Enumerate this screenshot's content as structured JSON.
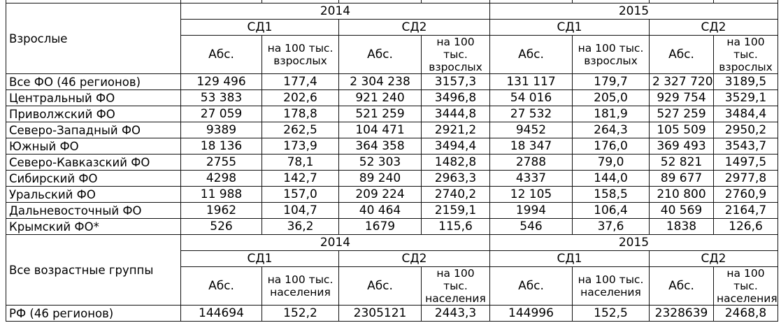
{
  "section1": {
    "label": "Взрослые",
    "year1": "2014",
    "year2": "2015",
    "sd1": "СД1",
    "sd2": "СД2",
    "abs": "Абс.",
    "per100": "на 100 тыс. взрослых",
    "rows": [
      {
        "region": "Все ФО (46 регионов)",
        "v": [
          "129 496",
          "177,4",
          "2 304 238",
          "3157,3",
          "131 117",
          "179,7",
          "2 327 720",
          "3189,5"
        ]
      },
      {
        "region": "Центральный ФО",
        "v": [
          "53 383",
          "202,6",
          "921 240",
          "3496,8",
          "54 016",
          "205,0",
          "929 754",
          "3529,1"
        ]
      },
      {
        "region": "Приволжский ФО",
        "v": [
          "27 059",
          "178,8",
          "521 259",
          "3444,8",
          "27 532",
          "181,9",
          "527 259",
          "3484,4"
        ]
      },
      {
        "region": "Северо-Западный ФО",
        "v": [
          "9389",
          "262,5",
          "104 471",
          "2921,2",
          "9452",
          "264,3",
          "105 509",
          "2950,2"
        ]
      },
      {
        "region": "Южный ФО",
        "v": [
          "18 136",
          "173,9",
          "364 358",
          "3494,4",
          "18 347",
          "176,0",
          "369 493",
          "3543,7"
        ]
      },
      {
        "region": "Северо-Кавказский ФО",
        "v": [
          "2755",
          "78,1",
          "52 303",
          "1482,8",
          "2788",
          "79,0",
          "52 821",
          "1497,5"
        ]
      },
      {
        "region": "Сибирский ФО",
        "v": [
          "4298",
          "142,7",
          "89 240",
          "2963,3",
          "4337",
          "144,0",
          "89 677",
          "2977,8"
        ]
      },
      {
        "region": "Уральский ФО",
        "v": [
          "11 988",
          "157,0",
          "209 224",
          "2740,2",
          "12 105",
          "158,5",
          "210 800",
          "2760,9"
        ]
      },
      {
        "region": "Дальневосточный ФО",
        "v": [
          "1962",
          "104,7",
          "40 464",
          "2159,1",
          "1994",
          "106,4",
          "40 569",
          "2164,7"
        ]
      },
      {
        "region": "Крымский ФО*",
        "v": [
          "526",
          "36,2",
          "1679",
          "115,6",
          "546",
          "37,6",
          "1838",
          "126,6"
        ]
      }
    ]
  },
  "section2": {
    "label": "Все возрастные группы",
    "year1": "2014",
    "year2": "2015",
    "sd1": "СД1",
    "sd2": "СД2",
    "abs": "Абс.",
    "per100": "на 100 тыс. населения",
    "rows": [
      {
        "region": "РФ (46 регионов)",
        "v": [
          "144694",
          "152,2",
          "2305121",
          "2443,3",
          "144996",
          "152,5",
          "2328639",
          "2468,8"
        ]
      }
    ]
  }
}
